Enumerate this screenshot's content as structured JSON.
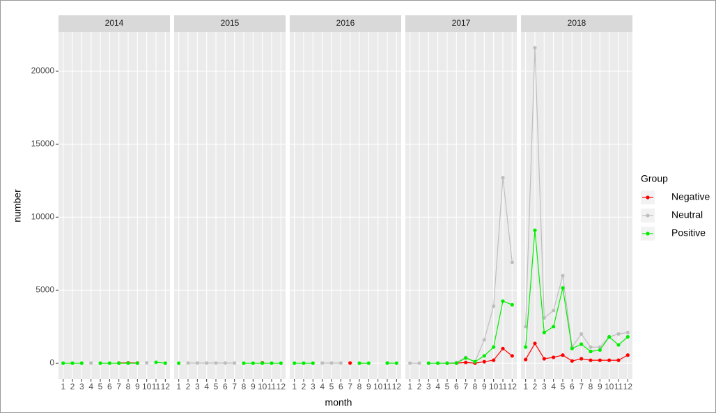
{
  "chart_data": {
    "type": "line",
    "x_label": "month",
    "y_label": "number",
    "legend_title": "Group",
    "facets": [
      "2014",
      "2015",
      "2016",
      "2017",
      "2018"
    ],
    "categories": [
      1,
      2,
      3,
      4,
      5,
      6,
      7,
      8,
      9,
      10,
      11,
      12
    ],
    "ylim": [
      -1080,
      22680
    ],
    "yticks": [
      0,
      5000,
      10000,
      15000,
      20000
    ],
    "grid": true,
    "series": [
      {
        "name": "Negative",
        "color": "#ff0000",
        "values": [
          [
            null,
            null,
            null,
            null,
            null,
            null,
            10,
            20,
            10,
            null,
            null,
            null
          ],
          [
            null,
            null,
            null,
            null,
            null,
            null,
            null,
            null,
            null,
            30,
            null,
            null
          ],
          [
            null,
            null,
            null,
            null,
            null,
            null,
            10,
            null,
            null,
            null,
            null,
            null
          ],
          [
            null,
            null,
            null,
            null,
            0,
            0,
            50,
            0,
            100,
            200,
            1000,
            500
          ],
          [
            250,
            1350,
            300,
            400,
            550,
            150,
            300,
            200,
            200,
            200,
            200,
            550
          ]
        ]
      },
      {
        "name": "Neutral",
        "color": "#bebebe",
        "values": [
          [
            null,
            null,
            null,
            10,
            null,
            null,
            null,
            null,
            null,
            20,
            null,
            null
          ],
          [
            null,
            10,
            10,
            10,
            10,
            10,
            10,
            null,
            null,
            null,
            null,
            null
          ],
          [
            null,
            null,
            null,
            10,
            10,
            10,
            null,
            null,
            null,
            null,
            null,
            null
          ],
          [
            0,
            0,
            null,
            0,
            0,
            50,
            400,
            100,
            1600,
            3900,
            12700,
            6900
          ],
          [
            2500,
            21600,
            3100,
            3600,
            6000,
            1100,
            2000,
            1100,
            1100,
            1800,
            2000,
            2100
          ]
        ]
      },
      {
        "name": "Positive",
        "color": "#00ee00",
        "values": [
          [
            0,
            0,
            0,
            null,
            0,
            0,
            0,
            0,
            0,
            null,
            60,
            0
          ],
          [
            0,
            null,
            null,
            null,
            null,
            null,
            null,
            0,
            0,
            0,
            0,
            0
          ],
          [
            0,
            0,
            0,
            null,
            null,
            null,
            null,
            0,
            0,
            null,
            10,
            0
          ],
          [
            null,
            null,
            0,
            0,
            0,
            0,
            350,
            100,
            500,
            1100,
            4250,
            4000
          ],
          [
            1100,
            9100,
            2100,
            2500,
            5150,
            1000,
            1300,
            800,
            900,
            1800,
            1250,
            1800
          ]
        ]
      }
    ]
  }
}
